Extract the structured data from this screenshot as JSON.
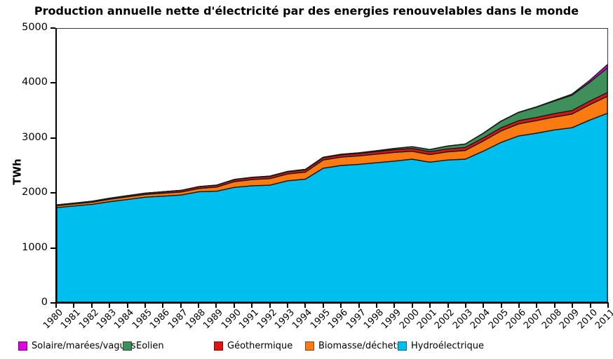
{
  "chart_data": {
    "type": "area",
    "stacked": true,
    "title": "Production annuelle nette d'électricité par des energies renouvelables dans le monde",
    "xlabel": "",
    "ylabel": "TWh",
    "ylim": [
      0,
      5000
    ],
    "yticks": [
      0,
      1000,
      2000,
      3000,
      4000,
      5000
    ],
    "grid": false,
    "legend_position": "bottom",
    "outline_color": "#1a1a1a",
    "x": [
      1980,
      1981,
      1982,
      1983,
      1984,
      1985,
      1986,
      1987,
      1988,
      1989,
      1990,
      1991,
      1992,
      1993,
      1994,
      1995,
      1996,
      1997,
      1998,
      1999,
      2000,
      2001,
      2002,
      2003,
      2004,
      2005,
      2006,
      2007,
      2008,
      2009,
      2010,
      2011
    ],
    "series": [
      {
        "name": "Hydroélectrique",
        "color": "#00bfef",
        "values": [
          1730,
          1760,
          1790,
          1840,
          1880,
          1920,
          1940,
          1960,
          2020,
          2030,
          2100,
          2130,
          2140,
          2220,
          2250,
          2450,
          2500,
          2520,
          2550,
          2580,
          2615,
          2560,
          2600,
          2615,
          2760,
          2920,
          3040,
          3090,
          3150,
          3190,
          3330,
          3455
        ]
      },
      {
        "name": "Biomasse/déchets",
        "color": "#fb7b12",
        "values": [
          35,
          37,
          40,
          43,
          47,
          50,
          53,
          56,
          60,
          75,
          105,
          112,
          120,
          125,
          130,
          150,
          152,
          155,
          158,
          160,
          145,
          140,
          150,
          160,
          185,
          210,
          220,
          230,
          235,
          250,
          280,
          310
        ]
      },
      {
        "name": "Géothermique",
        "color": "#dd1414",
        "values": [
          14,
          15,
          17,
          19,
          22,
          24,
          26,
          29,
          32,
          34,
          36,
          38,
          40,
          40,
          41,
          42,
          43,
          44,
          46,
          49,
          52,
          52,
          53,
          54,
          56,
          58,
          59,
          60,
          62,
          64,
          66,
          68
        ]
      },
      {
        "name": "Eolien",
        "color": "#3f8f5a",
        "values": [
          0,
          0,
          0,
          0,
          0,
          0,
          0,
          0,
          1,
          2,
          4,
          4,
          5,
          6,
          7,
          8,
          9,
          12,
          16,
          21,
          31,
          38,
          52,
          63,
          85,
          120,
          150,
          185,
          230,
          280,
          345,
          450
        ]
      },
      {
        "name": "Solaire/marées/vagues",
        "color": "#e000e0",
        "values": [
          1,
          1,
          1,
          1,
          1,
          1,
          1,
          1,
          1,
          1,
          1,
          1,
          1,
          1,
          1,
          1,
          1,
          1,
          1,
          1,
          1,
          2,
          2,
          2,
          3,
          4,
          5,
          7,
          12,
          20,
          34,
          62
        ]
      }
    ],
    "legend": [
      "Solaire/marées/vagues",
      "Eolien",
      "Géothermique",
      "Biomasse/déchets",
      "Hydroélectrique"
    ]
  }
}
